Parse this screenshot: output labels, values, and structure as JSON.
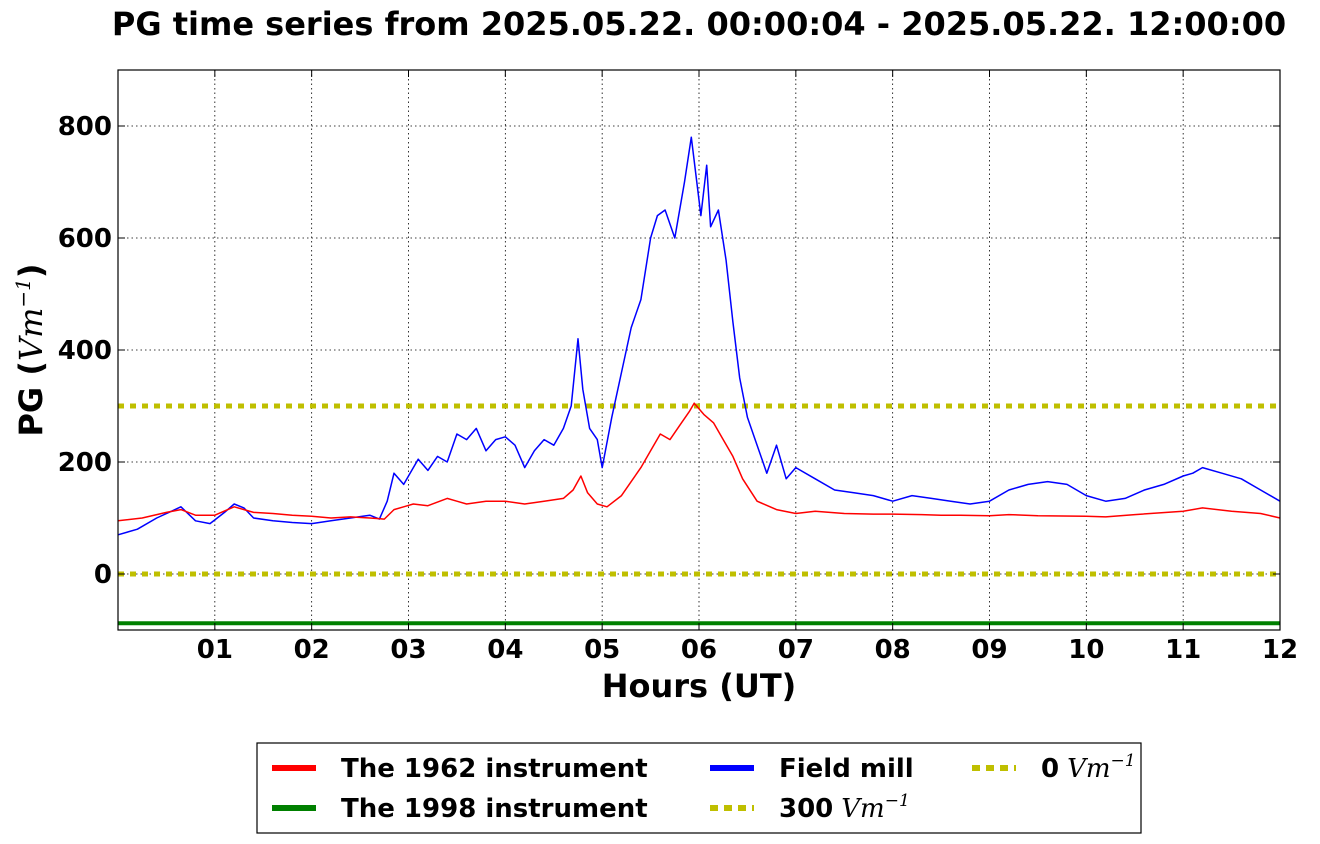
{
  "chart_data": {
    "type": "line",
    "title": "PG time series from 2025.05.22. 00:00:04 - 2025.05.22. 12:00:00",
    "xlabel": "Hours (UT)",
    "ylabel": "PG (",
    "ylabel_unit": "Vm",
    "ylabel_exp": "−1",
    "ylabel_close": ")",
    "xlim": [
      0,
      12
    ],
    "ylim": [
      -100,
      900
    ],
    "x_ticks": [
      1,
      2,
      3,
      4,
      5,
      6,
      7,
      8,
      9,
      10,
      11,
      12
    ],
    "x_tick_labels": [
      "01",
      "02",
      "03",
      "04",
      "05",
      "06",
      "07",
      "08",
      "09",
      "10",
      "11",
      "12"
    ],
    "y_ticks": [
      0,
      200,
      400,
      600,
      800
    ],
    "y_tick_labels": [
      "0",
      "200",
      "400",
      "600",
      "800"
    ],
    "grid": true,
    "legend_position": "bottom",
    "series": [
      {
        "name": "The 1962 instrument",
        "color": "#ff0000",
        "style": "solid",
        "x": [
          0,
          0.25,
          0.5,
          0.65,
          0.8,
          1.0,
          1.2,
          1.4,
          1.6,
          1.8,
          2.0,
          2.2,
          2.4,
          2.6,
          2.75,
          2.85,
          2.95,
          3.05,
          3.2,
          3.4,
          3.5,
          3.6,
          3.8,
          4.0,
          4.2,
          4.4,
          4.6,
          4.7,
          4.78,
          4.85,
          4.95,
          5.05,
          5.2,
          5.3,
          5.4,
          5.5,
          5.6,
          5.7,
          5.8,
          5.9,
          5.95,
          6.05,
          6.15,
          6.25,
          6.35,
          6.45,
          6.6,
          6.8,
          7.0,
          7.2,
          7.5,
          7.8,
          8.0,
          8.3,
          8.5,
          8.7,
          9.0,
          9.2,
          9.5,
          10.0,
          10.2,
          10.5,
          11.0,
          11.2,
          11.5,
          11.8,
          12.0
        ],
        "y": [
          95,
          100,
          110,
          115,
          105,
          105,
          120,
          110,
          108,
          105,
          103,
          100,
          102,
          100,
          98,
          115,
          120,
          125,
          122,
          135,
          130,
          125,
          130,
          130,
          125,
          130,
          135,
          150,
          175,
          145,
          125,
          120,
          140,
          165,
          190,
          220,
          250,
          240,
          265,
          290,
          305,
          285,
          270,
          240,
          210,
          170,
          130,
          115,
          108,
          112,
          108,
          107,
          107,
          106,
          105,
          105,
          104,
          106,
          104,
          103,
          102,
          106,
          112,
          118,
          112,
          108,
          100
        ]
      },
      {
        "name": "The 1998 instrument",
        "color": "#008000",
        "style": "solid",
        "x": [
          0,
          12
        ],
        "y": [
          -88,
          -88
        ]
      },
      {
        "name": "Field mill",
        "color": "#0000ff",
        "style": "solid",
        "x": [
          0,
          0.2,
          0.4,
          0.55,
          0.65,
          0.8,
          0.95,
          1.1,
          1.2,
          1.3,
          1.4,
          1.6,
          1.8,
          2.0,
          2.2,
          2.4,
          2.6,
          2.7,
          2.78,
          2.85,
          2.95,
          3.0,
          3.1,
          3.2,
          3.3,
          3.4,
          3.5,
          3.6,
          3.7,
          3.8,
          3.9,
          4.0,
          4.1,
          4.2,
          4.3,
          4.4,
          4.5,
          4.6,
          4.68,
          4.75,
          4.8,
          4.87,
          4.95,
          5.0,
          5.1,
          5.2,
          5.3,
          5.4,
          5.5,
          5.57,
          5.65,
          5.75,
          5.85,
          5.92,
          5.97,
          6.02,
          6.08,
          6.12,
          6.2,
          6.28,
          6.35,
          6.42,
          6.5,
          6.6,
          6.7,
          6.8,
          6.9,
          7.0,
          7.2,
          7.4,
          7.6,
          7.8,
          8.0,
          8.2,
          8.4,
          8.6,
          8.8,
          9.0,
          9.2,
          9.4,
          9.6,
          9.8,
          10.0,
          10.2,
          10.4,
          10.6,
          10.8,
          11.0,
          11.1,
          11.2,
          11.4,
          11.6,
          11.8,
          12.0
        ],
        "y": [
          70,
          80,
          100,
          112,
          120,
          95,
          90,
          110,
          125,
          118,
          100,
          95,
          92,
          90,
          95,
          100,
          105,
          98,
          130,
          180,
          160,
          175,
          205,
          185,
          210,
          200,
          250,
          240,
          260,
          220,
          240,
          245,
          230,
          190,
          220,
          240,
          230,
          260,
          300,
          420,
          330,
          260,
          240,
          190,
          280,
          360,
          440,
          490,
          600,
          640,
          650,
          600,
          700,
          780,
          710,
          640,
          730,
          620,
          650,
          560,
          450,
          350,
          280,
          230,
          180,
          230,
          170,
          190,
          170,
          150,
          145,
          140,
          130,
          140,
          135,
          130,
          125,
          130,
          150,
          160,
          165,
          160,
          140,
          130,
          135,
          150,
          160,
          175,
          180,
          190,
          180,
          170,
          150,
          130
        ]
      },
      {
        "name": "300",
        "name_unit": "Vm",
        "name_exp": "−1",
        "color": "#bfbf00",
        "style": "dotted",
        "x": [
          0,
          12
        ],
        "y": [
          300,
          300
        ]
      },
      {
        "name": "0",
        "name_unit": "Vm",
        "name_exp": "−1",
        "color": "#bfbf00",
        "style": "dotted",
        "x": [
          0,
          12
        ],
        "y": [
          0,
          0
        ]
      }
    ]
  }
}
